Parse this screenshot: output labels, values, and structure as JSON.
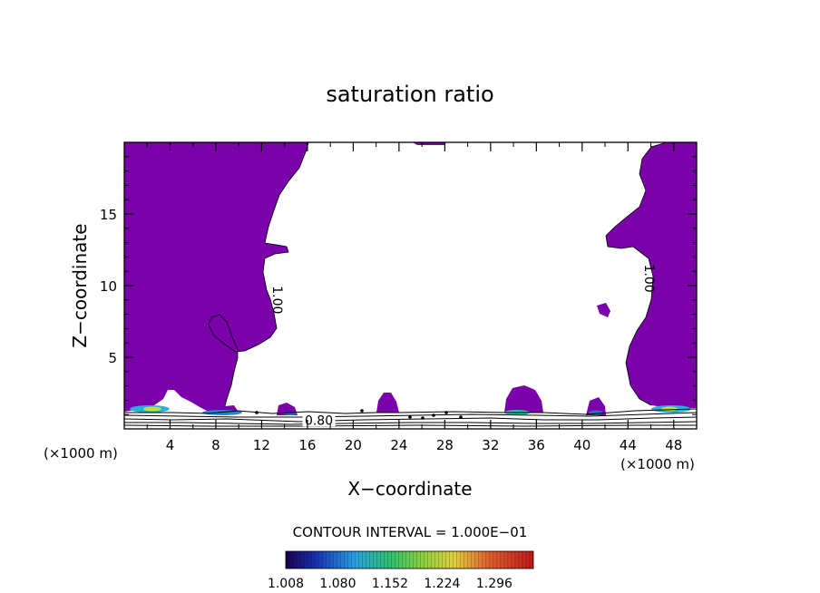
{
  "chart_data": {
    "type": "contour",
    "title": "saturation ratio",
    "xlabel": "X−coordinate",
    "ylabel": "Z−coordinate",
    "x_unit_left": "(×1000 m)",
    "x_unit_right": "(×1000 m)",
    "xlim": [
      0,
      50
    ],
    "ylim": [
      0,
      20
    ],
    "x_ticks": [
      4,
      8,
      12,
      16,
      20,
      24,
      28,
      32,
      36,
      40,
      44,
      48
    ],
    "x_tick_labels": [
      "4",
      "8",
      "12",
      "16",
      "20",
      "24",
      "28",
      "32",
      "36",
      "40",
      "44",
      "48"
    ],
    "y_ticks": [
      5,
      10,
      15
    ],
    "y_tick_labels": [
      "5",
      "10",
      "15"
    ],
    "contour_labels": [
      {
        "text": "1.00",
        "x": 13,
        "z": 9
      },
      {
        "text": "1.00",
        "x": 45.5,
        "z": 10.5
      },
      {
        "text": "0.80",
        "x": 17,
        "z": 0.3
      }
    ],
    "contour_interval_text": "CONTOUR INTERVAL = 1.000E−01",
    "colorbar": {
      "tick_labels": [
        "1.008",
        "1.080",
        "1.152",
        "1.224",
        "1.296"
      ],
      "tick_values": [
        1.008,
        1.08,
        1.152,
        1.224,
        1.296
      ],
      "range": [
        1.008,
        1.35
      ]
    },
    "colors": {
      "supersaturated_fill": "#7a00aa",
      "background": "#ffffff",
      "contour_line": "#000000"
    }
  }
}
